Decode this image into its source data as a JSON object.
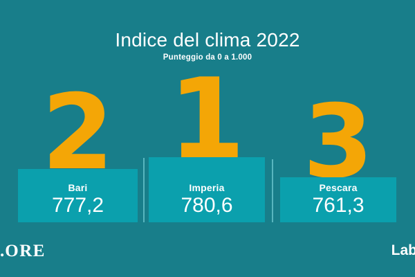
{
  "title": "Indice del clima 2022",
  "subtitle": "Punteggio da 0 a 1.000",
  "podium": [
    {
      "rank": "2",
      "city": "Bari",
      "score": "777,2"
    },
    {
      "rank": "1",
      "city": "Imperia",
      "score": "780,6"
    },
    {
      "rank": "3",
      "city": "Pescara",
      "score": "761,3"
    }
  ],
  "footer": {
    "left_logo_dot": ".",
    "left_logo": "ORE",
    "right_logo": "Lab"
  },
  "colors": {
    "background": "#187E8A",
    "box": "#0BA0AD",
    "accent_orange": "#F4A606",
    "text": "#FFFFFF",
    "divider": "#58B6BF"
  },
  "chart_data": {
    "type": "bar",
    "layout": "podium",
    "title": "Indice del clima 2022",
    "subtitle": "Punteggio da 0 a 1.000",
    "categories": [
      "Bari",
      "Imperia",
      "Pescara"
    ],
    "values": [
      777.2,
      780.6,
      761.3
    ],
    "ranks": [
      2,
      1,
      3
    ],
    "value_range": [
      0,
      1000
    ],
    "legend": "none",
    "grid": "off"
  }
}
